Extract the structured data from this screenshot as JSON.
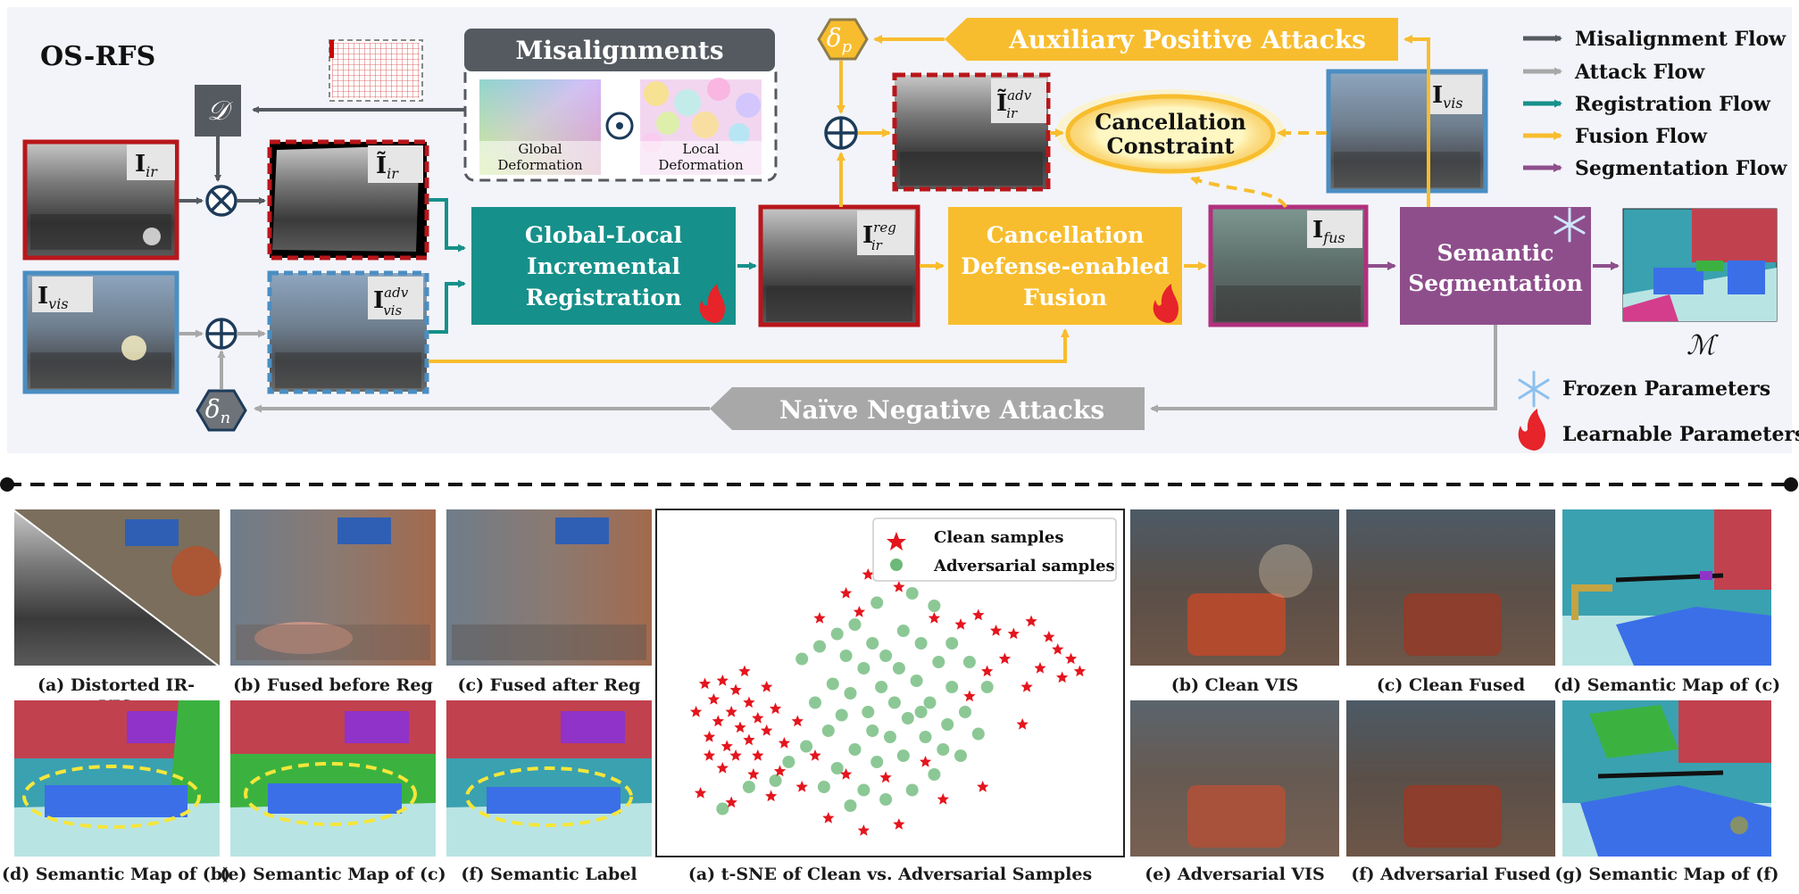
{
  "title": "OS-RFS",
  "misalignments": {
    "heading": "Misalignments",
    "global": [
      "Global",
      "Deformation"
    ],
    "local": [
      "Local",
      "Deformation"
    ]
  },
  "symbols": {
    "D": "𝒟",
    "delta_p": "δ",
    "delta_p_sub": "p",
    "delta_n": "δ",
    "delta_n_sub": "n",
    "M": "ℳ",
    "I": "I",
    "I_tilde": "Ĩ",
    "ir": "ir",
    "vis": "vis",
    "fus": "fus",
    "adv": "adv",
    "reg": "reg"
  },
  "blocks": {
    "registration": [
      "Global-Local",
      "Incremental",
      "Registration"
    ],
    "fusion": [
      "Cancellation",
      "Defense-enabled",
      "Fusion"
    ],
    "segmentation": [
      "Semantic",
      "Segmentation"
    ],
    "constraint": [
      "Cancellation",
      "Constraint"
    ]
  },
  "attacks": {
    "positive": "Auxiliary Positive Attacks",
    "negative": "Naïve Negative Attacks"
  },
  "legend": {
    "flows": [
      {
        "label": "Misalignment Flow",
        "color": "#555a60"
      },
      {
        "label": "Attack Flow",
        "color": "#a8a8a8"
      },
      {
        "label": "Registration Flow",
        "color": "#1b9488"
      },
      {
        "label": "Fusion Flow",
        "color": "#f8bd2e"
      },
      {
        "label": "Segmentation Flow",
        "color": "#8e4e8c"
      }
    ],
    "frozen": "Frozen Parameters",
    "learnable": "Learnable Parameters"
  },
  "captions": {
    "a_ir": "(a) Distorted IR-",
    "a_ir2": "VIS",
    "b_fb": "(b) Fused before Reg",
    "c_fa": "(c) Fused after Reg",
    "d_b": "(d) Semantic Map of (b)",
    "e_c": "(e) Semantic Map of (c)",
    "f_label": "(f) Semantic Label",
    "tsne": "(a) t-SNE  of Clean vs. Adversarial Samples",
    "b_vis": "(b) Clean VIS",
    "c_fused": "(c) Clean Fused",
    "d_c": "(d) Semantic Map of (c)",
    "e_adv": "(e) Adversarial VIS",
    "f_adv": "(f) Adversarial Fused",
    "g_f": "(g) Semantic Map of (f)"
  },
  "tsne_legend": {
    "clean": "Clean samples",
    "adversarial": "Adversarial samples"
  },
  "colors": {
    "ir_border": "#b8161b",
    "vis_border": "#4a8ec2",
    "fus_border": "#b0307e",
    "teal": "#16908a",
    "yellow": "#f8bd2e",
    "purple": "#8e4e8c",
    "gray_dark": "#555a60",
    "gray_light": "#a8a8a8",
    "panel_bg": "#f3f4fa"
  },
  "chart_data": {
    "type": "scatter",
    "title": "(a) t-SNE  of Clean vs. Adversarial Samples",
    "legend_position": "top-right",
    "series": [
      {
        "name": "Clean samples",
        "marker": "star",
        "color": "#e4151d",
        "points": [
          [
            0.08,
            0.49
          ],
          [
            0.12,
            0.48
          ],
          [
            0.15,
            0.51
          ],
          [
            0.1,
            0.54
          ],
          [
            0.14,
            0.58
          ],
          [
            0.18,
            0.55
          ],
          [
            0.11,
            0.61
          ],
          [
            0.16,
            0.63
          ],
          [
            0.2,
            0.6
          ],
          [
            0.09,
            0.66
          ],
          [
            0.13,
            0.69
          ],
          [
            0.18,
            0.67
          ],
          [
            0.22,
            0.64
          ],
          [
            0.15,
            0.72
          ],
          [
            0.2,
            0.72
          ],
          [
            0.24,
            0.57
          ],
          [
            0.06,
            0.58
          ],
          [
            0.17,
            0.45
          ],
          [
            0.22,
            0.5
          ],
          [
            0.12,
            0.76
          ],
          [
            0.26,
            0.68
          ],
          [
            0.09,
            0.72
          ],
          [
            0.19,
            0.78
          ],
          [
            0.25,
            0.77
          ],
          [
            0.07,
            0.84
          ],
          [
            0.14,
            0.87
          ],
          [
            0.23,
            0.85
          ],
          [
            0.3,
            0.82
          ],
          [
            0.36,
            0.92
          ],
          [
            0.44,
            0.96
          ],
          [
            0.52,
            0.94
          ],
          [
            0.4,
            0.78
          ],
          [
            0.62,
            0.86
          ],
          [
            0.71,
            0.82
          ],
          [
            0.8,
            0.62
          ],
          [
            0.58,
            0.74
          ],
          [
            0.49,
            0.79
          ],
          [
            0.33,
            0.72
          ],
          [
            0.29,
            0.61
          ],
          [
            0.34,
            0.28
          ],
          [
            0.4,
            0.2
          ],
          [
            0.45,
            0.14
          ],
          [
            0.48,
            0.09
          ],
          [
            0.51,
            0.05
          ],
          [
            0.43,
            0.26
          ],
          [
            0.52,
            0.18
          ],
          [
            0.56,
            0.12
          ],
          [
            0.6,
            0.28
          ],
          [
            0.66,
            0.3
          ],
          [
            0.7,
            0.27
          ],
          [
            0.74,
            0.32
          ],
          [
            0.78,
            0.33
          ],
          [
            0.82,
            0.29
          ],
          [
            0.76,
            0.41
          ],
          [
            0.84,
            0.44
          ],
          [
            0.72,
            0.45
          ],
          [
            0.88,
            0.38
          ],
          [
            0.91,
            0.41
          ],
          [
            0.86,
            0.34
          ],
          [
            0.93,
            0.45
          ],
          [
            0.89,
            0.47
          ],
          [
            0.81,
            0.5
          ],
          [
            0.68,
            0.53
          ]
        ]
      },
      {
        "name": "Adversarial samples",
        "marker": "circle",
        "color": "#2e9b3f",
        "points": [
          [
            0.38,
            0.33
          ],
          [
            0.42,
            0.3
          ],
          [
            0.46,
            0.36
          ],
          [
            0.4,
            0.4
          ],
          [
            0.44,
            0.44
          ],
          [
            0.49,
            0.4
          ],
          [
            0.53,
            0.32
          ],
          [
            0.57,
            0.36
          ],
          [
            0.52,
            0.44
          ],
          [
            0.48,
            0.5
          ],
          [
            0.56,
            0.48
          ],
          [
            0.61,
            0.42
          ],
          [
            0.64,
            0.5
          ],
          [
            0.59,
            0.55
          ],
          [
            0.54,
            0.6
          ],
          [
            0.5,
            0.66
          ],
          [
            0.45,
            0.58
          ],
          [
            0.41,
            0.52
          ],
          [
            0.37,
            0.49
          ],
          [
            0.33,
            0.55
          ],
          [
            0.36,
            0.64
          ],
          [
            0.42,
            0.7
          ],
          [
            0.47,
            0.74
          ],
          [
            0.53,
            0.72
          ],
          [
            0.58,
            0.66
          ],
          [
            0.63,
            0.62
          ],
          [
            0.67,
            0.58
          ],
          [
            0.7,
            0.65
          ],
          [
            0.66,
            0.72
          ],
          [
            0.6,
            0.78
          ],
          [
            0.55,
            0.83
          ],
          [
            0.49,
            0.86
          ],
          [
            0.44,
            0.83
          ],
          [
            0.38,
            0.76
          ],
          [
            0.31,
            0.69
          ],
          [
            0.27,
            0.74
          ],
          [
            0.35,
            0.82
          ],
          [
            0.41,
            0.88
          ],
          [
            0.3,
            0.41
          ],
          [
            0.34,
            0.37
          ],
          [
            0.6,
            0.24
          ],
          [
            0.64,
            0.36
          ],
          [
            0.68,
            0.42
          ],
          [
            0.72,
            0.5
          ],
          [
            0.57,
            0.58
          ],
          [
            0.51,
            0.55
          ],
          [
            0.46,
            0.64
          ],
          [
            0.39,
            0.59
          ],
          [
            0.62,
            0.7
          ],
          [
            0.24,
            0.8
          ],
          [
            0.18,
            0.82
          ],
          [
            0.12,
            0.89
          ],
          [
            0.55,
            0.2
          ],
          [
            0.47,
            0.23
          ]
        ]
      }
    ]
  }
}
